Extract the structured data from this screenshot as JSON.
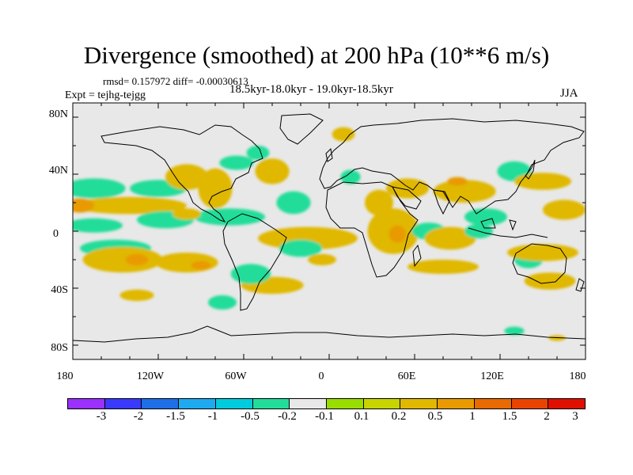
{
  "header": {
    "title": "Divergence (smoothed) at 200 hPa (10**6 m/s)",
    "stats": "rmsd= 0.157972 diff= -0.00030613",
    "period": "18.5kyr-18.0kyr - 19.0kyr-18.5kyr",
    "experiment": "Expt = tejhg-tejgg",
    "season": "JJA"
  },
  "map": {
    "projection": "cylindrical-equidistant",
    "background_color": "#e8e8e8",
    "lat_range": [
      -90,
      90
    ],
    "lon_range": [
      -180,
      180
    ],
    "lat_labels": [
      "80N",
      "40N",
      "0",
      "40S",
      "80S"
    ],
    "lon_labels": [
      "180",
      "120W",
      "60W",
      "0",
      "60E",
      "120E",
      "180"
    ]
  },
  "colorbar": {
    "colors": [
      "#9b30ff",
      "#3a3aff",
      "#1e6fe8",
      "#1eaaf0",
      "#00ccdd",
      "#22dd99",
      "#e8e8e8",
      "#99dd00",
      "#c8d400",
      "#e0b800",
      "#e89a00",
      "#e86a00",
      "#e84400",
      "#e01000"
    ],
    "labels": [
      "-3",
      "-2",
      "-1.5",
      "-1",
      "-0.5",
      "-0.2",
      "-0.1",
      "0.1",
      "0.2",
      "0.5",
      "1",
      "1.5",
      "2",
      "3"
    ]
  },
  "field_blobs": [
    {
      "lon": -165,
      "lat": 30,
      "rx": 22,
      "ry": 7,
      "v": -0.3
    },
    {
      "lon": -120,
      "lat": 30,
      "rx": 20,
      "ry": 6,
      "v": -0.15
    },
    {
      "lon": -140,
      "lat": 18,
      "rx": 40,
      "ry": 6,
      "v": 0.3
    },
    {
      "lon": -175,
      "lat": 18,
      "rx": 10,
      "ry": 5,
      "v": 0.6
    },
    {
      "lon": -165,
      "lat": 4,
      "rx": 20,
      "ry": 5,
      "v": -0.4
    },
    {
      "lon": -115,
      "lat": 8,
      "rx": 20,
      "ry": 6,
      "v": -0.2
    },
    {
      "lon": -150,
      "lat": -12,
      "rx": 25,
      "ry": 6,
      "v": -0.15
    },
    {
      "lon": -145,
      "lat": -20,
      "rx": 28,
      "ry": 9,
      "v": 0.3
    },
    {
      "lon": -135,
      "lat": -20,
      "rx": 8,
      "ry": 4,
      "v": 0.6
    },
    {
      "lon": -100,
      "lat": -22,
      "rx": 22,
      "ry": 7,
      "v": 0.3
    },
    {
      "lon": -90,
      "lat": -24,
      "rx": 7,
      "ry": 3,
      "v": 0.6
    },
    {
      "lon": -135,
      "lat": -45,
      "rx": 12,
      "ry": 4,
      "v": 0.3
    },
    {
      "lon": -40,
      "lat": -38,
      "rx": 22,
      "ry": 6,
      "v": 0.3
    },
    {
      "lon": -55,
      "lat": -30,
      "rx": 14,
      "ry": 7,
      "v": -0.2
    },
    {
      "lon": -75,
      "lat": -50,
      "rx": 10,
      "ry": 5,
      "v": -0.2
    },
    {
      "lon": -100,
      "lat": 38,
      "rx": 15,
      "ry": 9,
      "v": 0.3
    },
    {
      "lon": -80,
      "lat": 30,
      "rx": 12,
      "ry": 14,
      "v": 0.4
    },
    {
      "lon": -65,
      "lat": 48,
      "rx": 12,
      "ry": 5,
      "v": -0.2
    },
    {
      "lon": -70,
      "lat": 10,
      "rx": 25,
      "ry": 6,
      "v": -0.3
    },
    {
      "lon": -100,
      "lat": 12,
      "rx": 10,
      "ry": 4,
      "v": 0.3
    },
    {
      "lon": -40,
      "lat": 42,
      "rx": 12,
      "ry": 9,
      "v": 0.3
    },
    {
      "lon": -50,
      "lat": 55,
      "rx": 8,
      "ry": 5,
      "v": -0.2
    },
    {
      "lon": -25,
      "lat": 20,
      "rx": 12,
      "ry": 8,
      "v": -0.2
    },
    {
      "lon": -15,
      "lat": -5,
      "rx": 35,
      "ry": 8,
      "v": 0.2
    },
    {
      "lon": -20,
      "lat": -12,
      "rx": 15,
      "ry": 6,
      "v": -0.3
    },
    {
      "lon": -5,
      "lat": -20,
      "rx": 10,
      "ry": 4,
      "v": 0.2
    },
    {
      "lon": 10,
      "lat": 68,
      "rx": 8,
      "ry": 5,
      "v": 0.2
    },
    {
      "lon": 15,
      "lat": 38,
      "rx": 7,
      "ry": 5,
      "v": -0.3
    },
    {
      "lon": 35,
      "lat": 20,
      "rx": 10,
      "ry": 9,
      "v": 0.4
    },
    {
      "lon": 55,
      "lat": 30,
      "rx": 15,
      "ry": 7,
      "v": 0.3
    },
    {
      "lon": 45,
      "lat": 0,
      "rx": 18,
      "ry": 16,
      "v": 0.3
    },
    {
      "lon": 48,
      "lat": -2,
      "rx": 6,
      "ry": 6,
      "v": 0.7
    },
    {
      "lon": 70,
      "lat": 0,
      "rx": 12,
      "ry": 6,
      "v": -0.3
    },
    {
      "lon": 85,
      "lat": -5,
      "rx": 18,
      "ry": 8,
      "v": 0.3
    },
    {
      "lon": 80,
      "lat": -25,
      "rx": 25,
      "ry": 5,
      "v": 0.3
    },
    {
      "lon": 95,
      "lat": 28,
      "rx": 22,
      "ry": 8,
      "v": 0.3
    },
    {
      "lon": 90,
      "lat": 35,
      "rx": 7,
      "ry": 3,
      "v": 0.6
    },
    {
      "lon": 110,
      "lat": 10,
      "rx": 15,
      "ry": 6,
      "v": -0.3
    },
    {
      "lon": 105,
      "lat": 0,
      "rx": 10,
      "ry": 5,
      "v": -0.4
    },
    {
      "lon": 130,
      "lat": 42,
      "rx": 12,
      "ry": 7,
      "v": -0.3
    },
    {
      "lon": 150,
      "lat": 35,
      "rx": 20,
      "ry": 6,
      "v": 0.3
    },
    {
      "lon": 165,
      "lat": 15,
      "rx": 15,
      "ry": 7,
      "v": 0.3
    },
    {
      "lon": 140,
      "lat": -20,
      "rx": 10,
      "ry": 6,
      "v": -0.3
    },
    {
      "lon": 150,
      "lat": -15,
      "rx": 25,
      "ry": 6,
      "v": 0.3
    },
    {
      "lon": 155,
      "lat": -35,
      "rx": 18,
      "ry": 6,
      "v": 0.3
    },
    {
      "lon": 130,
      "lat": -70,
      "rx": 7,
      "ry": 3,
      "v": -0.2
    },
    {
      "lon": 160,
      "lat": -75,
      "rx": 6,
      "ry": 2,
      "v": 0.2
    }
  ]
}
